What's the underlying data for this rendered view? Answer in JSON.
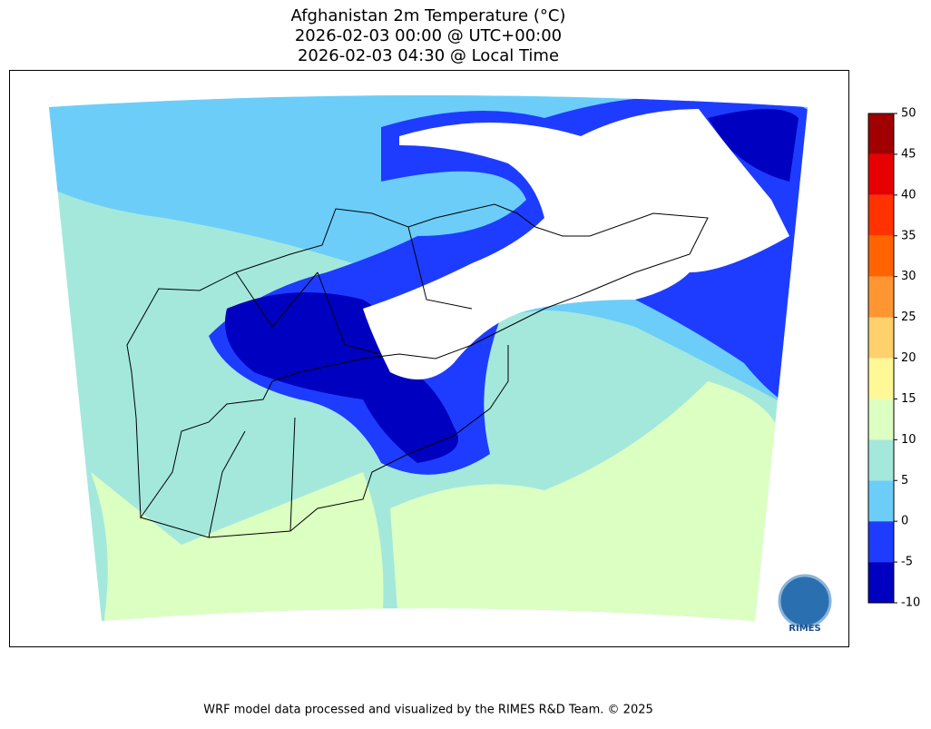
{
  "title": [
    "Afghanistan 2m Temperature (°C)",
    "2026-02-03 00:00 @ UTC+00:00",
    "2026-02-03 04:30 @ Local Time"
  ],
  "colorbar": {
    "ticks": [
      -10,
      -5,
      0,
      5,
      10,
      15,
      20,
      25,
      30,
      35,
      40,
      45,
      50
    ],
    "colors": [
      "#0000c0",
      "#1e3cff",
      "#6ccdf9",
      "#a4e8dc",
      "#dcffc2",
      "#fff896",
      "#ffd06c",
      "#ff9632",
      "#ff6400",
      "#ff3200",
      "#e60000",
      "#a00000"
    ]
  },
  "logo": "RIMES",
  "footer": "WRF model data processed and visualized by the RIMES R&D Team. © 2025"
}
